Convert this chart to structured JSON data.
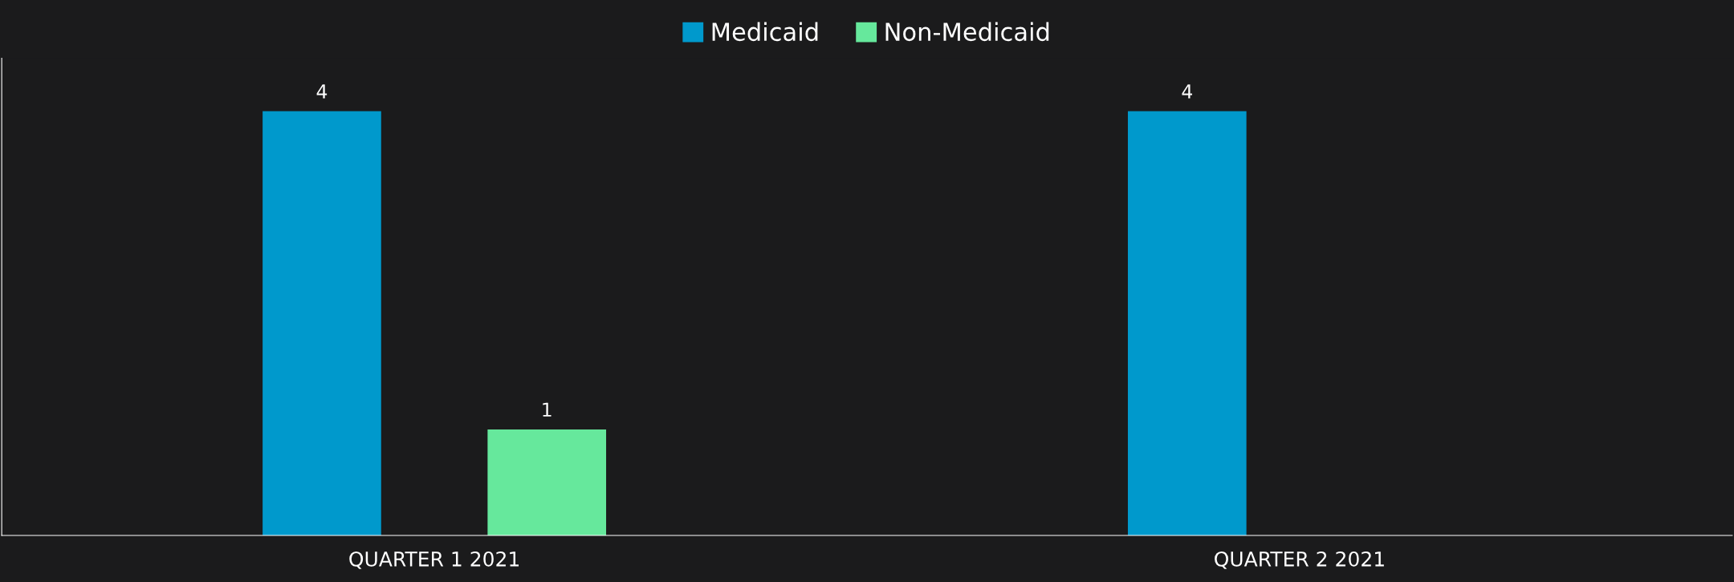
{
  "chart_data": {
    "type": "bar",
    "categories": [
      "QUARTER 1 2021",
      "QUARTER 2 2021"
    ],
    "series": [
      {
        "name": "Medicaid",
        "color": "#0099cc",
        "values": [
          4,
          4
        ]
      },
      {
        "name": "Non-Medicaid",
        "color": "#66e89c",
        "values": [
          1,
          null
        ]
      }
    ],
    "data_labels": true,
    "legend": "top"
  }
}
